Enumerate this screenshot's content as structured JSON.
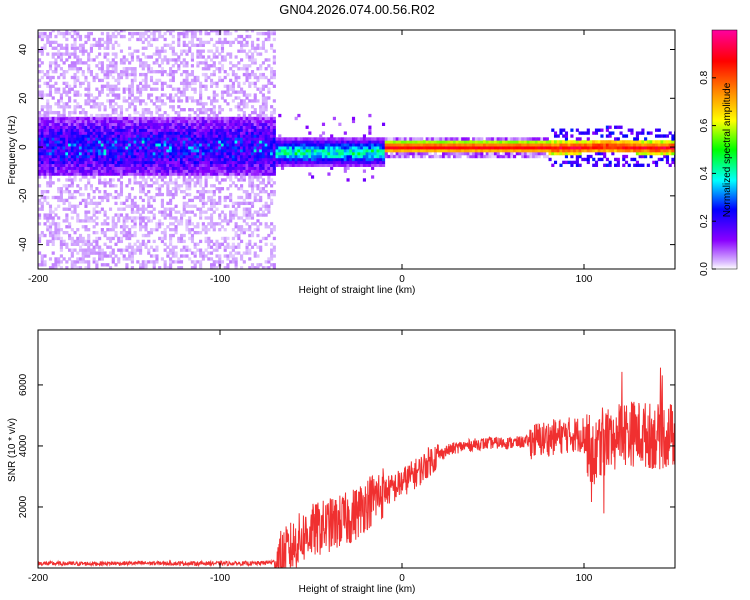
{
  "figure_title": "GN04.2026.074.00.56.R02",
  "chart_data": [
    {
      "type": "heatmap",
      "title": "",
      "xlabel": "Height of straight line (km)",
      "ylabel": "Frequency (Hz)",
      "xlim": [
        -200,
        150
      ],
      "ylim": [
        -50,
        48
      ],
      "xticks": [
        -200,
        -100,
        0,
        100
      ],
      "yticks": [
        -40,
        -20,
        0,
        20,
        40
      ],
      "colorbar": {
        "label": "Normalized spectral amplitude",
        "range": [
          0,
          1
        ],
        "ticks": [
          0.0,
          0.2,
          0.4,
          0.6,
          0.8
        ],
        "colormap": "hsv (violet - blue - cyan - green - yellow - red - magenta)"
      },
      "regions": [
        {
          "x_range": [
            -200,
            -70
          ],
          "frequency_spread": [
            -50,
            48
          ],
          "peak_amplitude": 0.3
        },
        {
          "x_range": [
            -70,
            -10
          ],
          "center_frequency": -2,
          "frequency_spread": [
            -8,
            4
          ],
          "peak_amplitude": 0.6
        },
        {
          "x_range": [
            -10,
            80
          ],
          "center_frequency": 0,
          "frequency_spread": [
            -2,
            2
          ],
          "peak_amplitude": 0.9
        },
        {
          "x_range": [
            80,
            150
          ],
          "center_frequency": 0,
          "frequency_spread": [
            -6,
            8
          ],
          "peak_amplitude": 0.9
        }
      ]
    },
    {
      "type": "line",
      "title": "",
      "xlabel": "Height of straight line (km)",
      "ylabel": "SNR (10 * v/v)",
      "xlim": [
        -200,
        150
      ],
      "ylim": [
        0,
        7800
      ],
      "xticks": [
        -200,
        -100,
        0,
        100
      ],
      "yticks": [
        2000,
        4000,
        6000
      ],
      "color": "#f03030",
      "series": [
        {
          "x": [
            -200,
            -180,
            -160,
            -140,
            -120,
            -100,
            -80,
            -70,
            -65,
            -60,
            -55,
            -50,
            -45,
            -40,
            -35,
            -30,
            -25,
            -20,
            -15,
            -10,
            -5,
            0,
            5,
            10,
            15,
            20,
            25,
            30,
            40,
            50,
            60,
            70,
            80,
            90,
            100,
            105,
            110,
            115,
            120,
            130,
            140,
            150
          ],
          "values": [
            150,
            140,
            150,
            160,
            150,
            150,
            150,
            200,
            400,
            700,
            1000,
            1200,
            1300,
            1400,
            1500,
            1600,
            1800,
            2100,
            2300,
            2500,
            2600,
            2800,
            3000,
            3200,
            3500,
            3700,
            3850,
            3950,
            4050,
            4100,
            4100,
            4150,
            4250,
            4350,
            4400,
            3600,
            4300,
            4200,
            4450,
            4400,
            4300,
            4350
          ]
        }
      ]
    }
  ]
}
